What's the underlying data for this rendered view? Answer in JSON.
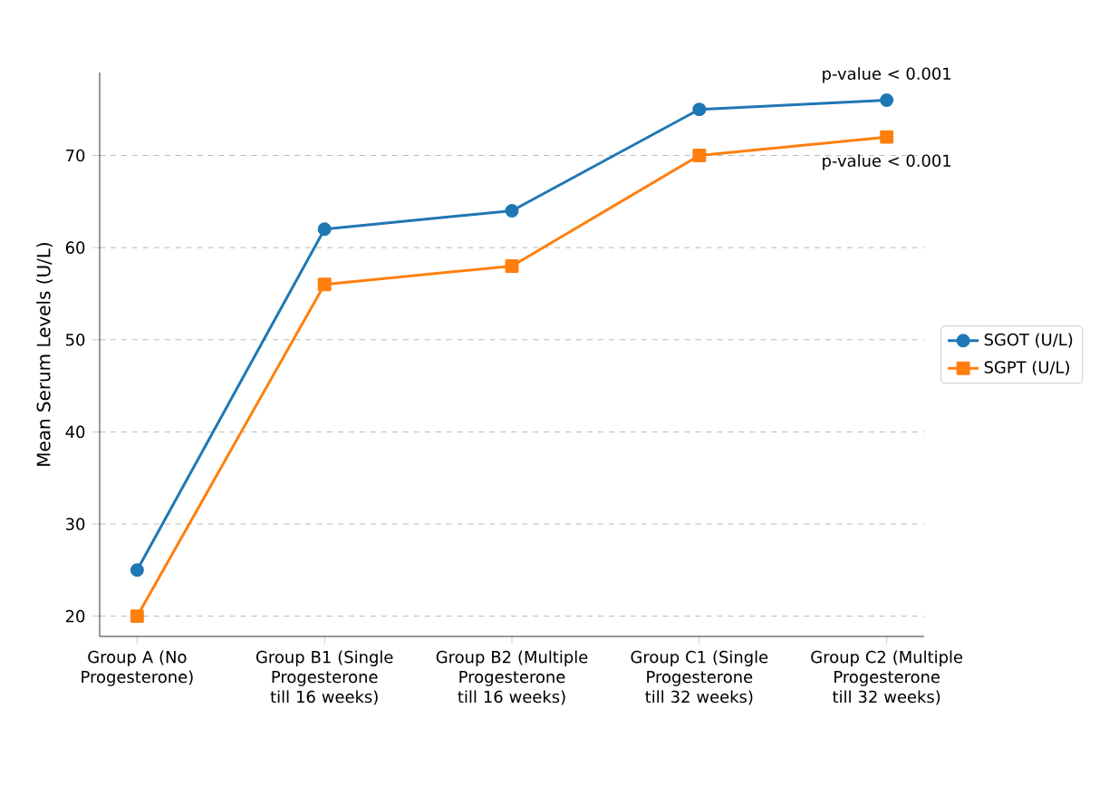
{
  "chart_data": {
    "type": "line",
    "ylabel": "Mean Serum Levels (U/L)",
    "categories": [
      "Group A (No Progesterone)",
      "Group B1 (Single Progesterone till 16 weeks)",
      "Group B2 (Multiple Progesterone till 16 weeks)",
      "Group C1 (Single Progesterone till 32 weeks)",
      "Group C2 (Multiple Progesterone till 32 weeks)"
    ],
    "series": [
      {
        "name": "SGOT (U/L)",
        "color": "#1f77b4",
        "marker": "circle",
        "values": [
          25,
          62,
          64,
          75,
          76
        ]
      },
      {
        "name": "SGPT (U/L)",
        "color": "#ff7f0e",
        "marker": "square",
        "values": [
          20,
          56,
          58,
          70,
          72
        ]
      }
    ],
    "ylim": [
      17.8,
      79
    ],
    "yticks": [
      20,
      30,
      40,
      50,
      60,
      70
    ],
    "grid": "y",
    "legend": "right",
    "annotations": [
      {
        "text": "p-value < 0.001",
        "x": "Group C2 (Multiple Progesterone till 32 weeks)",
        "y": 76
      },
      {
        "text": "p-value < 0.001",
        "x": "Group C2 (Multiple Progesterone till 32 weeks)",
        "y": 72
      }
    ]
  }
}
